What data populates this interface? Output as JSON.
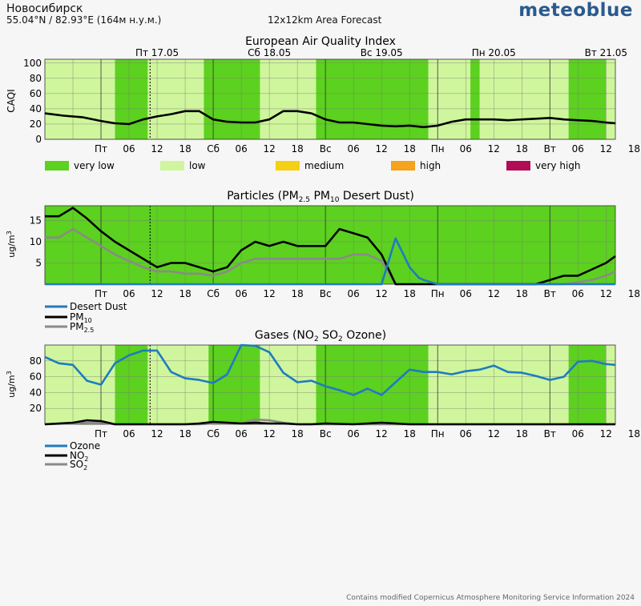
{
  "header": {
    "location": "Новосибирск",
    "coords": "55.04°N / 82.93°E (164м н.у.м.)",
    "subtitle": "12x12km Area Forecast",
    "brand": "meteoblue"
  },
  "footer": "Contains modified Copernicus Atmosphere Monitoring Service Information 2024",
  "colors": {
    "very_low": "#5cd11f",
    "low": "#cff69c",
    "medium": "#f5d015",
    "high": "#f5a21e",
    "very_high": "#b10c55",
    "desert_dust": "#1f7bc1",
    "pm10": "#000000",
    "pm25": "#8a8a8a",
    "ozone": "#1f7bc1",
    "no2": "#000000",
    "so2": "#8a8a8a"
  },
  "day_labels": [
    "Пт 17.05",
    "Сб 18.05",
    "Вс 19.05",
    "Пн 20.05",
    "Вт 21.05"
  ],
  "x_tick_labels": [
    "Пт",
    "06",
    "12",
    "18",
    "Сб",
    "06",
    "12",
    "18",
    "Вс",
    "06",
    "12",
    "18",
    "Пн",
    "06",
    "12",
    "18",
    "Вт",
    "06",
    "12",
    "18"
  ],
  "legend_aqi": [
    "very low",
    "low",
    "medium",
    "high",
    "very high"
  ],
  "chart_data": [
    {
      "type": "line",
      "title": "European Air Quality Index",
      "ylabel": "CAQI",
      "x_unit": "hours since Fri 17.05 00:00",
      "ylim": [
        0,
        105
      ],
      "yticks": [
        0,
        20,
        40,
        60,
        80,
        100
      ],
      "background_bands": [
        {
          "level": "low",
          "from": -12,
          "to": 3
        },
        {
          "level": "very low",
          "from": 3,
          "to": 10
        },
        {
          "level": "low",
          "from": 10,
          "to": 22
        },
        {
          "level": "very low",
          "from": 22,
          "to": 34
        },
        {
          "level": "low",
          "from": 34,
          "to": 46
        },
        {
          "level": "very low",
          "from": 46,
          "to": 70
        },
        {
          "level": "low",
          "from": 70,
          "to": 79
        },
        {
          "level": "very low",
          "from": 79,
          "to": 81
        },
        {
          "level": "low",
          "from": 81,
          "to": 100
        },
        {
          "level": "very low",
          "from": 100,
          "to": 108
        },
        {
          "level": "low",
          "from": 108,
          "to": 110
        }
      ],
      "series": [
        {
          "name": "CAQI",
          "color_key": "pm10",
          "x": [
            -12,
            -8,
            -4,
            0,
            3,
            6,
            9,
            12,
            15,
            18,
            21,
            24,
            27,
            30,
            33,
            36,
            39,
            42,
            45,
            48,
            51,
            54,
            57,
            60,
            63,
            66,
            69,
            72,
            75,
            78,
            81,
            84,
            87,
            90,
            93,
            96,
            99,
            102,
            105,
            108,
            110
          ],
          "y": [
            34,
            31,
            29,
            24,
            21,
            20,
            26,
            30,
            33,
            37,
            37,
            26,
            23,
            22,
            22,
            26,
            37,
            37,
            34,
            26,
            22,
            22,
            20,
            18,
            17,
            18,
            16,
            18,
            23,
            26,
            26,
            26,
            25,
            26,
            27,
            28,
            26,
            25,
            24,
            22,
            21
          ]
        }
      ]
    },
    {
      "type": "line",
      "title": "Particles (PM2.5 PM10 Desert Dust)",
      "ylabel": "ug/m3",
      "x_unit": "hours since Fri 17.05 00:00",
      "ylim": [
        0,
        18.5
      ],
      "yticks": [
        5,
        10,
        15
      ],
      "background_bands": [
        {
          "level": "very low",
          "from": -12,
          "to": 110
        }
      ],
      "series": [
        {
          "name": "Desert Dust",
          "color_key": "desert_dust",
          "x": [
            -12,
            42,
            45,
            48,
            51,
            54,
            57,
            60,
            63,
            66,
            68,
            69,
            72,
            110
          ],
          "y": [
            0,
            0,
            0,
            0,
            0,
            0,
            0,
            0,
            10.8,
            4,
            1.5,
            1,
            0,
            0
          ]
        },
        {
          "name": "PM10",
          "color_key": "pm10",
          "x": [
            -12,
            -9,
            -6,
            -3,
            0,
            3,
            6,
            9,
            12,
            15,
            18,
            21,
            24,
            27,
            30,
            33,
            36,
            39,
            42,
            45,
            48,
            51,
            54,
            57,
            60,
            63,
            66,
            69,
            72,
            75,
            78,
            81,
            84,
            87,
            90,
            93,
            96,
            99,
            102,
            105,
            108,
            110
          ],
          "y": [
            16,
            16,
            18,
            15.5,
            12.5,
            10,
            8,
            6,
            4,
            5,
            5,
            4,
            3,
            4,
            8,
            10,
            9,
            10,
            9,
            9,
            9,
            13,
            12,
            11,
            7,
            0,
            0,
            0,
            0,
            0,
            0,
            0,
            0,
            0,
            0,
            0,
            1,
            2,
            2,
            3.5,
            5,
            6.6
          ]
        },
        {
          "name": "PM2.5",
          "color_key": "pm25",
          "x": [
            -12,
            -9,
            -6,
            -3,
            0,
            3,
            6,
            9,
            12,
            15,
            18,
            21,
            24,
            27,
            30,
            33,
            36,
            39,
            42,
            45,
            48,
            51,
            54,
            57,
            60,
            63,
            66,
            96,
            99,
            102,
            105,
            108,
            110
          ],
          "y": [
            11,
            11,
            13,
            11,
            9,
            7,
            5.5,
            4,
            3,
            3,
            2.5,
            2.5,
            2,
            3,
            5,
            6,
            6,
            6,
            6,
            6,
            6,
            6,
            7,
            7,
            5.5,
            0,
            0,
            0,
            0,
            0.5,
            1,
            2,
            3
          ]
        }
      ]
    },
    {
      "type": "line",
      "title": "Gases (NO2 SO2 Ozone)",
      "ylabel": "ug/m3",
      "x_unit": "hours since Fri 17.05 00:00",
      "ylim": [
        0,
        100
      ],
      "yticks": [
        20,
        40,
        60,
        80
      ],
      "background_bands": [
        {
          "level": "low",
          "from": -12,
          "to": 3
        },
        {
          "level": "very low",
          "from": 3,
          "to": 10
        },
        {
          "level": "low",
          "from": 10,
          "to": 23
        },
        {
          "level": "very low",
          "from": 23,
          "to": 34
        },
        {
          "level": "low",
          "from": 34,
          "to": 46
        },
        {
          "level": "very low",
          "from": 46,
          "to": 70
        },
        {
          "level": "low",
          "from": 70,
          "to": 100
        },
        {
          "level": "very low",
          "from": 100,
          "to": 108
        },
        {
          "level": "low",
          "from": 108,
          "to": 110
        }
      ],
      "series": [
        {
          "name": "Ozone",
          "color_key": "ozone",
          "x": [
            -12,
            -9,
            -6,
            -3,
            0,
            3,
            6,
            9,
            12,
            15,
            18,
            21,
            24,
            27,
            30,
            33,
            36,
            39,
            42,
            45,
            48,
            51,
            54,
            57,
            60,
            63,
            66,
            69,
            72,
            75,
            78,
            81,
            84,
            87,
            90,
            93,
            96,
            99,
            102,
            105,
            108,
            110
          ],
          "y": [
            85,
            77,
            75,
            55,
            50,
            77,
            87,
            93,
            93,
            66,
            58,
            56,
            52,
            63,
            100,
            99,
            91,
            65,
            53,
            55,
            48,
            43,
            37,
            45,
            37,
            53,
            69,
            66,
            66,
            63,
            67,
            69,
            74,
            66,
            65,
            61,
            56,
            60,
            79,
            80,
            76,
            75
          ]
        },
        {
          "name": "NO2",
          "color_key": "no2",
          "x": [
            -12,
            -6,
            -3,
            0,
            3,
            6,
            12,
            18,
            21,
            24,
            27,
            30,
            33,
            36,
            39,
            42,
            45,
            48,
            54,
            57,
            60,
            63,
            66,
            72,
            78,
            84,
            90,
            96,
            102,
            108,
            110
          ],
          "y": [
            0,
            2,
            5,
            4,
            0,
            0,
            0,
            0,
            1,
            3,
            2,
            1,
            2,
            1,
            1,
            0,
            0,
            1,
            0,
            1,
            2,
            1,
            0,
            0,
            0,
            0,
            0,
            0,
            0,
            0,
            0
          ]
        },
        {
          "name": "SO2",
          "color_key": "so2",
          "x": [
            -12,
            -6,
            -3,
            0,
            3,
            6,
            12,
            18,
            21,
            24,
            27,
            30,
            33,
            36,
            39,
            42,
            45,
            48,
            54,
            60,
            66,
            72,
            78,
            84,
            90,
            96,
            102,
            108,
            110
          ],
          "y": [
            0,
            1,
            2,
            2,
            0,
            0,
            0,
            0,
            0,
            1,
            1,
            1,
            6,
            5,
            2,
            0,
            0,
            0,
            0,
            0,
            0,
            0,
            0,
            0,
            0,
            0,
            0,
            0,
            0
          ]
        }
      ]
    }
  ]
}
